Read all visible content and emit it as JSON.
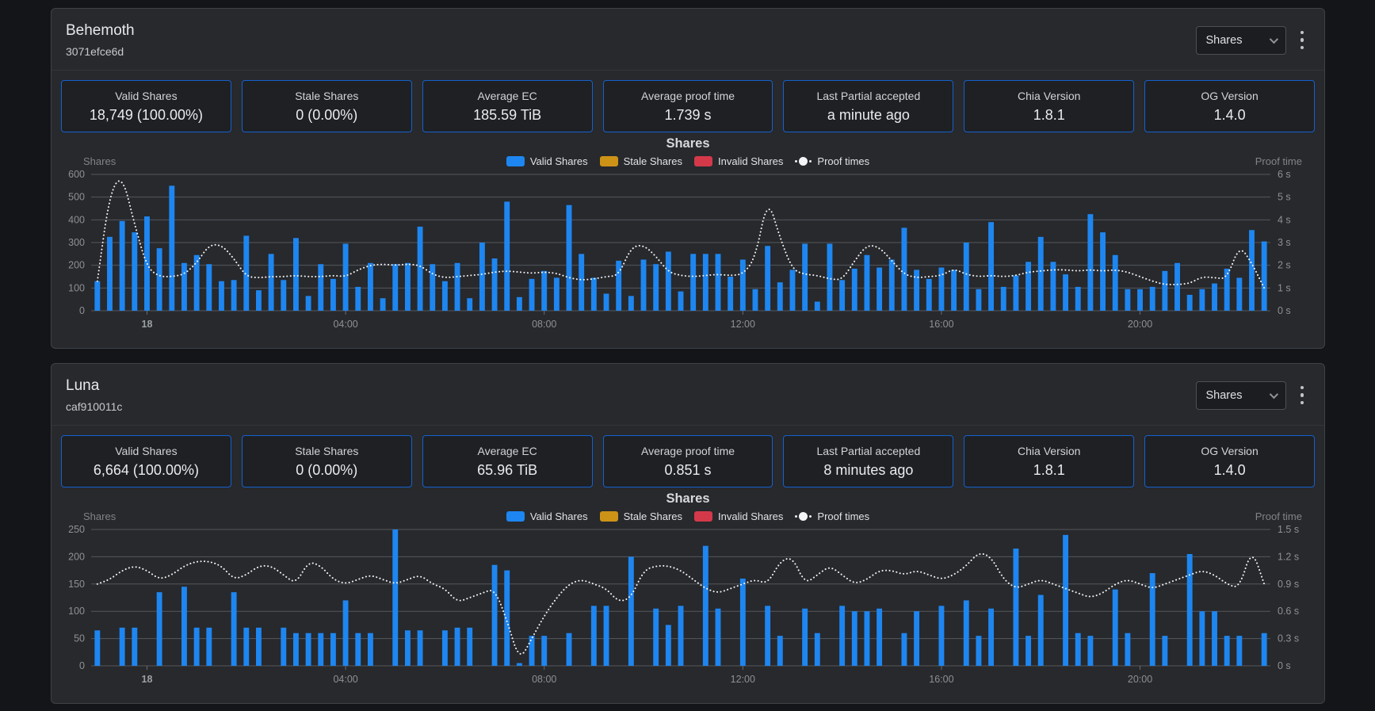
{
  "cards": [
    {
      "title": "Behemoth",
      "id": "3071efce6d",
      "selector": {
        "value": "Shares"
      },
      "stats": [
        {
          "label": "Valid Shares",
          "value": "18,749 (100.00%)"
        },
        {
          "label": "Stale Shares",
          "value": "0 (0.00%)"
        },
        {
          "label": "Average EC",
          "value": "185.59 TiB"
        },
        {
          "label": "Average proof time",
          "value": "1.739 s"
        },
        {
          "label": "Last Partial accepted",
          "value": "a minute ago"
        },
        {
          "label": "Chia Version",
          "value": "1.8.1"
        },
        {
          "label": "OG Version",
          "value": "1.4.0"
        }
      ]
    },
    {
      "title": "Luna",
      "id": "caf910011c",
      "selector": {
        "value": "Shares"
      },
      "stats": [
        {
          "label": "Valid Shares",
          "value": "6,664 (100.00%)"
        },
        {
          "label": "Stale Shares",
          "value": "0 (0.00%)"
        },
        {
          "label": "Average EC",
          "value": "65.96 TiB"
        },
        {
          "label": "Average proof time",
          "value": "0.851 s"
        },
        {
          "label": "Last Partial accepted",
          "value": "8 minutes ago"
        },
        {
          "label": "Chia Version",
          "value": "1.8.1"
        },
        {
          "label": "OG Version",
          "value": "1.4.0"
        }
      ]
    }
  ],
  "colors": {
    "valid": "#1e86f0",
    "stale": "#cd9317",
    "invalid": "#d4394a",
    "proof": "#f2f3f4",
    "grid": "#55575c",
    "stat_border": "#1461cf"
  },
  "chart_data": [
    {
      "type": "bar",
      "title": "Shares",
      "left_axis": {
        "title": "Shares",
        "max": 600,
        "ticks": [
          600,
          500,
          400,
          300,
          200,
          100,
          0
        ]
      },
      "right_axis": {
        "title": "Proof time",
        "max": 6,
        "ticks": [
          "6 s",
          "5 s",
          "4 s",
          "3 s",
          "2 s",
          "1 s",
          "0 s"
        ]
      },
      "x_ticks": [
        {
          "index": 4,
          "label": "18",
          "bold": true
        },
        {
          "index": 20,
          "label": "04:00"
        },
        {
          "index": 36,
          "label": "08:00"
        },
        {
          "index": 52,
          "label": "12:00"
        },
        {
          "index": 68,
          "label": "16:00"
        },
        {
          "index": 84,
          "label": "20:00"
        }
      ],
      "legend": [
        {
          "label": "Valid Shares",
          "color": "#1e86f0",
          "type": "box"
        },
        {
          "label": "Stale Shares",
          "color": "#cd9317",
          "type": "box"
        },
        {
          "label": "Invalid Shares",
          "color": "#d4394a",
          "type": "box"
        },
        {
          "label": "Proof times",
          "color": "#f2f3f4",
          "type": "dotted-line"
        }
      ],
      "series": [
        {
          "name": "Valid Shares",
          "type": "bar",
          "axis": "left",
          "color": "#1e86f0",
          "values": [
            130,
            325,
            395,
            345,
            415,
            275,
            550,
            210,
            245,
            205,
            130,
            135,
            330,
            90,
            250,
            135,
            320,
            65,
            205,
            140,
            295,
            105,
            210,
            55,
            205,
            210,
            370,
            205,
            130,
            210,
            55,
            300,
            230,
            480,
            60,
            140,
            175,
            145,
            465,
            250,
            145,
            75,
            220,
            65,
            225,
            205,
            260,
            85,
            250,
            250,
            250,
            150,
            225,
            95,
            285,
            125,
            180,
            295,
            40,
            295,
            135,
            185,
            245,
            190,
            225,
            365,
            180,
            140,
            190,
            180,
            300,
            95,
            390,
            105,
            155,
            215,
            325,
            215,
            160,
            105,
            425,
            345,
            245,
            95,
            95,
            105,
            175,
            210,
            70,
            95,
            120,
            185,
            145,
            355,
            305
          ]
        },
        {
          "name": "Proof times",
          "type": "line",
          "axis": "right",
          "color": "#f2f3f4",
          "values": [
            1.3,
            5.2,
            6.0,
            3.8,
            1.9,
            1.5,
            1.5,
            1.6,
            2.1,
            2.9,
            2.9,
            2.3,
            1.5,
            1.45,
            1.5,
            1.5,
            1.55,
            1.5,
            1.5,
            1.55,
            1.5,
            1.8,
            2.0,
            2.05,
            2.0,
            2.05,
            2.0,
            1.6,
            1.45,
            1.5,
            1.55,
            1.6,
            1.7,
            1.75,
            1.7,
            1.65,
            1.7,
            1.65,
            1.45,
            1.35,
            1.4,
            1.5,
            1.55,
            2.8,
            2.9,
            2.4,
            1.7,
            1.55,
            1.5,
            1.55,
            1.6,
            1.55,
            1.6,
            2.3,
            5.0,
            3.2,
            1.8,
            1.6,
            1.55,
            1.4,
            1.35,
            2.2,
            2.9,
            2.8,
            2.2,
            1.6,
            1.45,
            1.5,
            1.55,
            1.85,
            1.6,
            1.5,
            1.55,
            1.5,
            1.55,
            1.7,
            1.75,
            1.8,
            1.8,
            1.75,
            1.8,
            1.75,
            1.8,
            1.7,
            1.5,
            1.3,
            1.15,
            1.15,
            1.2,
            1.5,
            1.45,
            1.4,
            2.9,
            2.1,
            1.0
          ]
        }
      ]
    },
    {
      "type": "bar",
      "title": "Shares",
      "left_axis": {
        "title": "Shares",
        "max": 250,
        "ticks": [
          250,
          200,
          150,
          100,
          50,
          0
        ]
      },
      "right_axis": {
        "title": "Proof time",
        "max": 1.5,
        "ticks": [
          "1.5 s",
          "1.2 s",
          "0.9 s",
          "0.6 s",
          "0.3 s",
          "0 s"
        ]
      },
      "x_ticks": [
        {
          "index": 4,
          "label": "18",
          "bold": true
        },
        {
          "index": 20,
          "label": "04:00"
        },
        {
          "index": 36,
          "label": "08:00"
        },
        {
          "index": 52,
          "label": "12:00"
        },
        {
          "index": 68,
          "label": "16:00"
        },
        {
          "index": 84,
          "label": "20:00"
        }
      ],
      "legend": [
        {
          "label": "Valid Shares",
          "color": "#1e86f0",
          "type": "box"
        },
        {
          "label": "Stale Shares",
          "color": "#cd9317",
          "type": "box"
        },
        {
          "label": "Invalid Shares",
          "color": "#d4394a",
          "type": "box"
        },
        {
          "label": "Proof times",
          "color": "#f2f3f4",
          "type": "dotted-line"
        }
      ],
      "series": [
        {
          "name": "Valid Shares",
          "type": "bar",
          "axis": "left",
          "color": "#1e86f0",
          "values": [
            65,
            0,
            70,
            70,
            0,
            135,
            0,
            145,
            70,
            70,
            0,
            135,
            70,
            70,
            0,
            70,
            60,
            60,
            60,
            60,
            120,
            60,
            60,
            0,
            250,
            65,
            65,
            0,
            65,
            70,
            70,
            0,
            185,
            175,
            5,
            55,
            55,
            0,
            60,
            0,
            110,
            110,
            0,
            200,
            0,
            105,
            75,
            110,
            0,
            220,
            105,
            0,
            160,
            0,
            110,
            55,
            0,
            105,
            60,
            0,
            110,
            100,
            100,
            105,
            0,
            60,
            100,
            0,
            110,
            0,
            120,
            55,
            105,
            0,
            215,
            55,
            130,
            0,
            240,
            60,
            55,
            0,
            140,
            60,
            0,
            170,
            55,
            0,
            205,
            100,
            100,
            55,
            55,
            0,
            60
          ]
        },
        {
          "name": "Proof times",
          "type": "line",
          "axis": "right",
          "color": "#f2f3f4",
          "values": [
            0.9,
            0.95,
            1.05,
            1.1,
            1.05,
            0.95,
            1.0,
            1.1,
            1.15,
            1.15,
            1.1,
            0.95,
            1.0,
            1.1,
            1.1,
            1.0,
            0.9,
            1.15,
            1.1,
            0.95,
            0.9,
            0.95,
            1.0,
            0.95,
            0.9,
            0.95,
            1.0,
            0.9,
            0.85,
            0.7,
            0.75,
            0.8,
            0.85,
            0.5,
            0.05,
            0.3,
            0.55,
            0.75,
            0.9,
            0.95,
            0.9,
            0.85,
            0.7,
            0.75,
            1.05,
            1.1,
            1.1,
            1.05,
            0.95,
            0.85,
            0.8,
            0.85,
            0.9,
            0.95,
            0.9,
            1.15,
            1.2,
            0.9,
            1.0,
            1.1,
            1.0,
            0.9,
            0.95,
            1.05,
            1.05,
            1.0,
            1.05,
            1.0,
            0.95,
            1.0,
            1.1,
            1.25,
            1.2,
            0.95,
            0.85,
            0.9,
            0.95,
            0.9,
            0.85,
            0.8,
            0.75,
            0.8,
            0.9,
            0.95,
            0.9,
            0.85,
            0.9,
            0.95,
            1.0,
            1.05,
            1.0,
            0.9,
            0.85,
            1.3,
            0.9
          ]
        }
      ]
    }
  ]
}
